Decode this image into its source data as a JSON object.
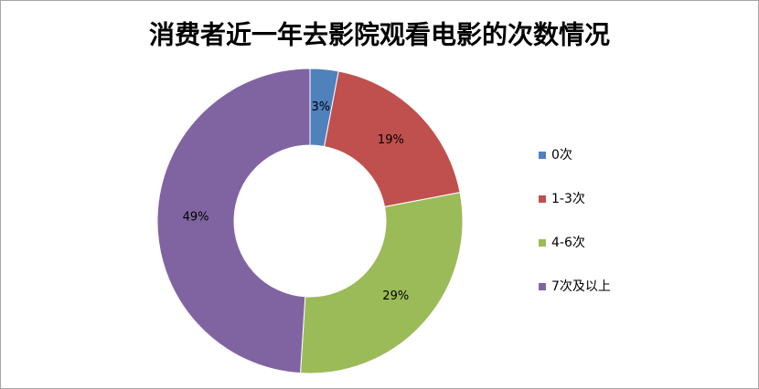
{
  "chart_data": {
    "type": "donut",
    "title": "消费者近一年去影院观看电影的次数情况",
    "categories": [
      "0次",
      "1-3次",
      "4-6次",
      "7次及以上"
    ],
    "values": [
      3,
      19,
      29,
      49
    ],
    "value_labels": [
      "3%",
      "19%",
      "29%",
      "49%"
    ],
    "colors": [
      "#4f81bd",
      "#c0504d",
      "#9bbb59",
      "#8064a2"
    ],
    "legend": "right"
  }
}
